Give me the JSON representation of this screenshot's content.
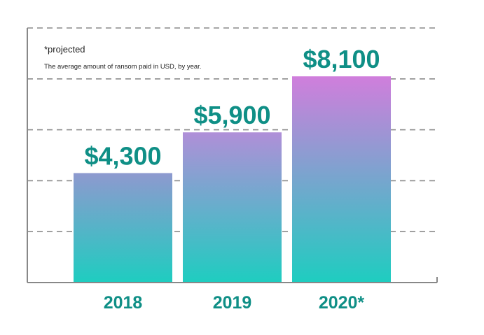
{
  "notes": {
    "projected": "*projected",
    "description": "The average amount of ransom paid in USD, by year."
  },
  "colors": {
    "accent_text": "#0f8f86",
    "bar_top_2018": "#8e99cf",
    "bar_top_2019": "#b08fd8",
    "bar_top_2020": "#d07edc",
    "bar_bottom": "#1ecdc0",
    "gridline": "#8a8a8a",
    "axis": "#888888"
  },
  "chart_data": {
    "type": "bar",
    "categories": [
      "2018",
      "2019",
      "2020*"
    ],
    "values": [
      4300,
      5900,
      8100
    ],
    "value_labels": [
      "$4,300",
      "$5,900",
      "$8,100"
    ],
    "ylim": [
      0,
      10000
    ],
    "grid": true,
    "title": "",
    "xlabel": "",
    "ylabel": ""
  }
}
